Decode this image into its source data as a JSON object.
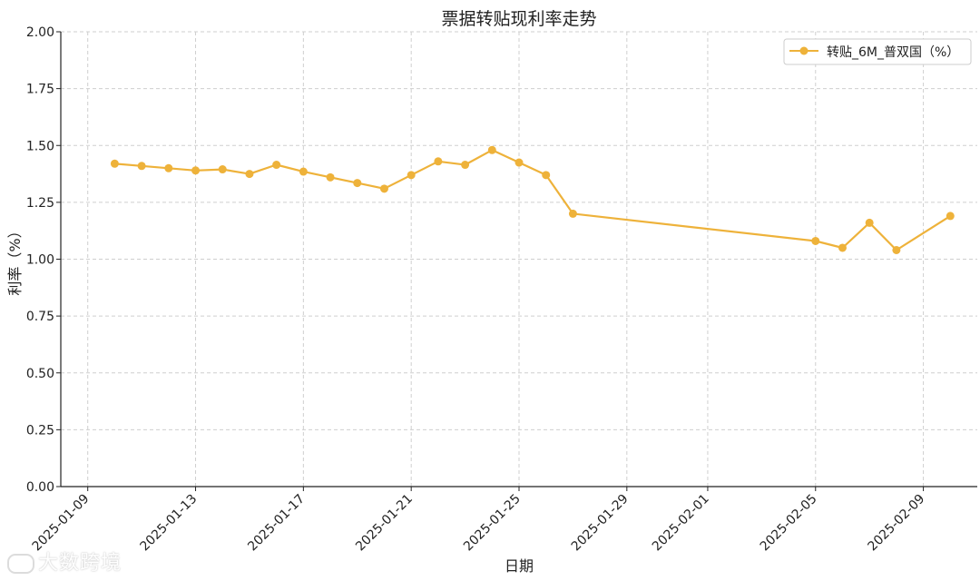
{
  "chart_data": {
    "type": "line",
    "title": "票据转贴现利率走势",
    "xlabel": "日期",
    "ylabel": "利率（%）",
    "ylim": [
      0,
      2.0
    ],
    "yticks": [
      0.0,
      0.25,
      0.5,
      0.75,
      1.0,
      1.25,
      1.5,
      1.75,
      2.0
    ],
    "ytick_labels": [
      "0.00",
      "0.25",
      "0.50",
      "0.75",
      "1.00",
      "1.25",
      "1.50",
      "1.75",
      "2.00"
    ],
    "xlim": [
      "2025-01-08",
      "2025-02-11"
    ],
    "xticks": [
      "2025-01-09",
      "2025-01-13",
      "2025-01-17",
      "2025-01-21",
      "2025-01-25",
      "2025-01-29",
      "2025-02-01",
      "2025-02-05",
      "2025-02-09"
    ],
    "grid": true,
    "legend_position": "top-right",
    "series": [
      {
        "name": "转贴_6M_普双国（%）",
        "color": "#EEB23A",
        "x": [
          "2025-01-10",
          "2025-01-11",
          "2025-01-12",
          "2025-01-13",
          "2025-01-14",
          "2025-01-15",
          "2025-01-16",
          "2025-01-17",
          "2025-01-18",
          "2025-01-19",
          "2025-01-20",
          "2025-01-21",
          "2025-01-22",
          "2025-01-23",
          "2025-01-24",
          "2025-01-25",
          "2025-01-26",
          "2025-01-27",
          "2025-02-05",
          "2025-02-06",
          "2025-02-07",
          "2025-02-08",
          "2025-02-10"
        ],
        "values": [
          1.42,
          1.41,
          1.4,
          1.39,
          1.395,
          1.375,
          1.415,
          1.385,
          1.36,
          1.335,
          1.31,
          1.37,
          1.43,
          1.415,
          1.48,
          1.425,
          1.37,
          1.2,
          1.08,
          1.05,
          1.16,
          1.04,
          1.19
        ]
      }
    ]
  },
  "watermark": {
    "text": "大数跨境"
  }
}
